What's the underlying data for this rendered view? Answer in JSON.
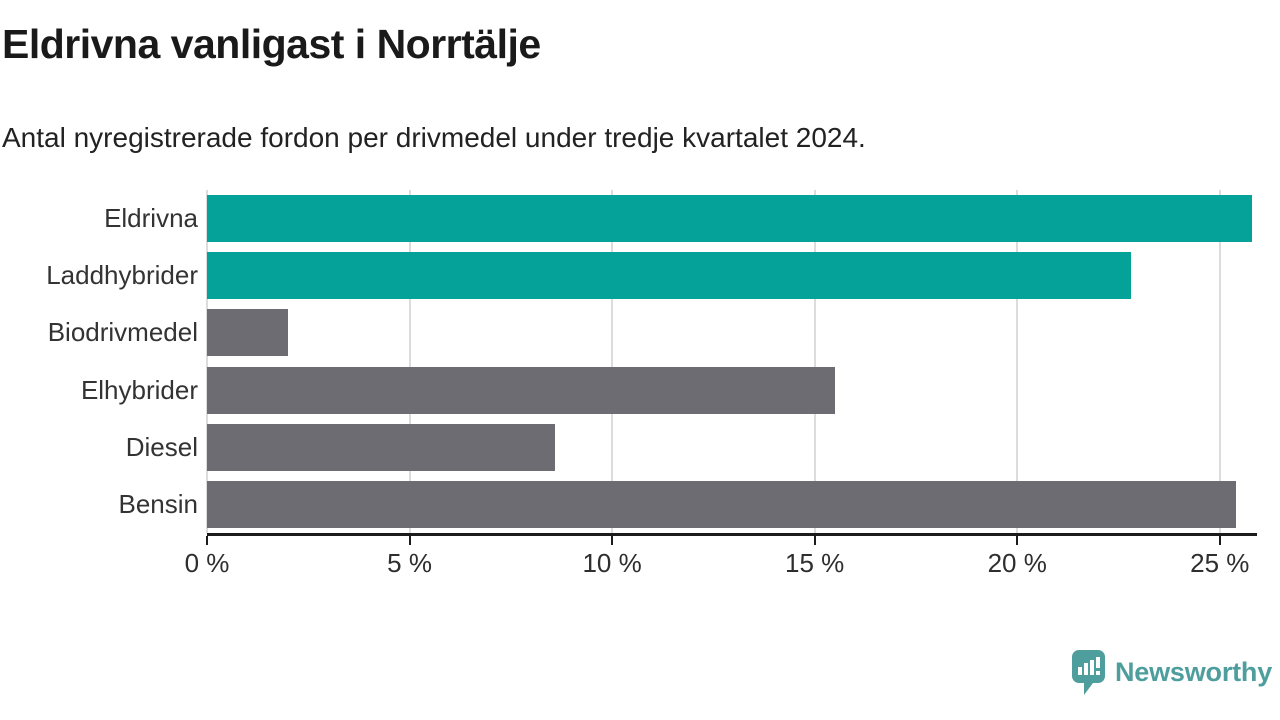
{
  "header": {
    "title": "Eldrivna vanligast i Norrtälje",
    "subtitle": "Antal nyregistrerade fordon per drivmedel under tredje kvartalet 2024."
  },
  "colors": {
    "highlight_bar": "#05a29a",
    "default_bar": "#6d6c72",
    "gridline": "#dcdcdc",
    "axis": "#1c1c1c",
    "logo_teal": "#4e9e9d"
  },
  "chart_data": {
    "type": "bar",
    "orientation": "horizontal",
    "title": "Eldrivna vanligast i Norrtälje",
    "subtitle": "Antal nyregistrerade fordon per drivmedel under tredje kvartalet 2024.",
    "categories": [
      "Eldrivna",
      "Laddhybrider",
      "Biodrivmedel",
      "Elhybrider",
      "Diesel",
      "Bensin"
    ],
    "values": [
      25.8,
      22.8,
      2.0,
      15.5,
      8.6,
      25.4
    ],
    "unit": "%",
    "bar_colors": [
      "#05a29a",
      "#05a29a",
      "#6d6c72",
      "#6d6c72",
      "#6d6c72",
      "#6d6c72"
    ],
    "xlim": [
      0,
      25.87
    ],
    "xticks": [
      0,
      5,
      10,
      15,
      20,
      25
    ],
    "xtick_labels": [
      "0 %",
      "5 %",
      "10 %",
      "15 %",
      "20 %",
      "25 %"
    ],
    "grid": true,
    "legend": false
  },
  "footer": {
    "brand": "Newsworthy"
  }
}
